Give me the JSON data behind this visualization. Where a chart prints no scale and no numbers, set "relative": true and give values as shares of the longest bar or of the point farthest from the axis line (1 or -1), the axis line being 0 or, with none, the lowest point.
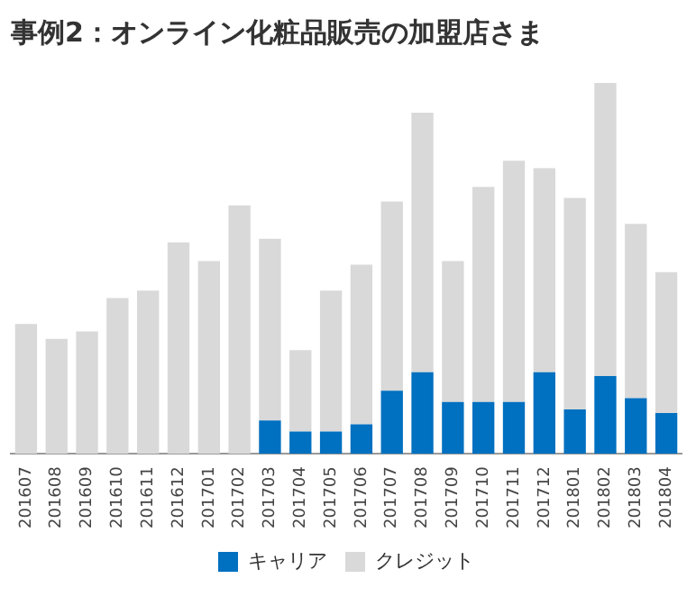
{
  "chart_data": {
    "type": "bar",
    "title": "事例2：オンライン化粧品販売の加盟店さま",
    "stacked": true,
    "relative": true,
    "legend": "bottom",
    "grid": false,
    "categories": [
      "201607",
      "201608",
      "201609",
      "201610",
      "201611",
      "201612",
      "201701",
      "201702",
      "201703",
      "201704",
      "201705",
      "201706",
      "201707",
      "201708",
      "201709",
      "201710",
      "201711",
      "201712",
      "201801",
      "201802",
      "201803",
      "201804"
    ],
    "series": [
      {
        "name": "キャリア",
        "color": "#0070c0",
        "values": [
          null,
          null,
          null,
          null,
          null,
          null,
          null,
          null,
          0.09,
          0.06,
          0.06,
          0.08,
          0.17,
          0.22,
          0.14,
          0.14,
          0.14,
          0.22,
          0.12,
          0.21,
          0.15,
          0.11
        ]
      },
      {
        "name": "クレジット",
        "color": "#d9d9d9",
        "values": [
          0.35,
          0.31,
          0.33,
          0.42,
          0.44,
          0.57,
          0.52,
          0.67,
          0.49,
          0.22,
          0.38,
          0.43,
          0.51,
          0.7,
          0.38,
          0.58,
          0.65,
          0.55,
          0.57,
          0.79,
          0.47,
          0.38
        ]
      }
    ]
  }
}
